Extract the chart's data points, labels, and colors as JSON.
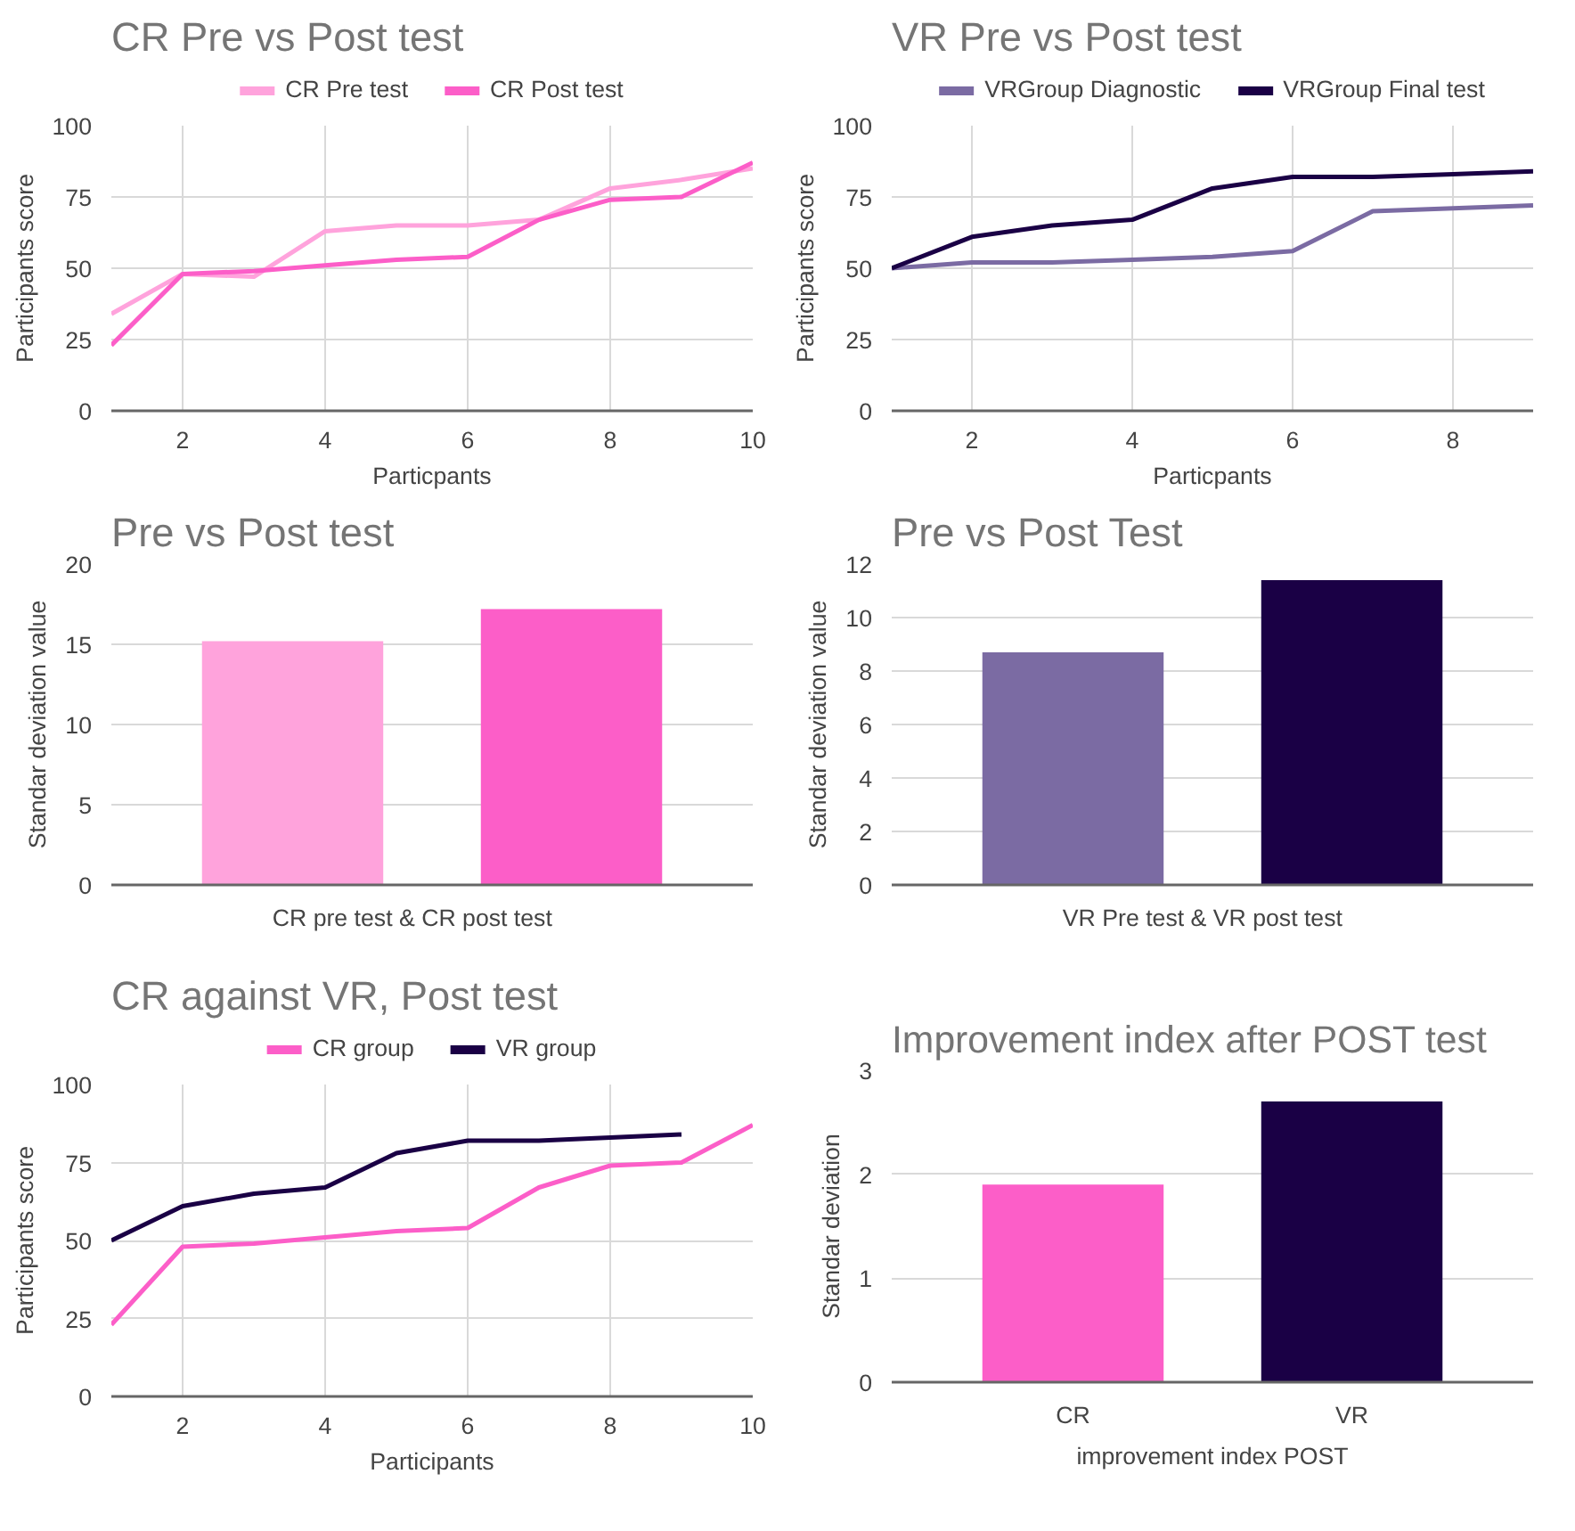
{
  "chart_data": [
    {
      "type": "line",
      "title": "CR Pre vs  Post test",
      "xlabel": "Particpants",
      "ylabel": "Participants score",
      "x": [
        1,
        2,
        3,
        4,
        5,
        6,
        7,
        8,
        9,
        10
      ],
      "xlim": [
        1,
        10
      ],
      "xticks": [
        2,
        4,
        6,
        8,
        10
      ],
      "ylim": [
        0,
        100
      ],
      "yticks": [
        0,
        25,
        50,
        75,
        100
      ],
      "grid": true,
      "legend": "top",
      "series": [
        {
          "name": "CR Pre test",
          "color": "#ffa3dc",
          "values": [
            34,
            48,
            47,
            63,
            65,
            65,
            67,
            78,
            81,
            85
          ]
        },
        {
          "name": "CR Post test",
          "color": "#fc5ec8",
          "values": [
            23,
            48,
            49,
            51,
            53,
            54,
            67,
            74,
            75,
            87
          ]
        }
      ]
    },
    {
      "type": "line",
      "title": "VR Pre vs Post test",
      "xlabel": "Particpants",
      "ylabel": "Participants score",
      "x": [
        1,
        2,
        3,
        4,
        5,
        6,
        7,
        8,
        9
      ],
      "xlim": [
        1,
        9
      ],
      "xticks": [
        2,
        4,
        6,
        8
      ],
      "ylim": [
        0,
        100
      ],
      "yticks": [
        0,
        25,
        50,
        75,
        100
      ],
      "grid": true,
      "legend": "top",
      "series": [
        {
          "name": "VRGroup Diagnostic",
          "color": "#7b6ba3",
          "values": [
            50,
            52,
            52,
            53,
            54,
            56,
            70,
            71,
            72
          ]
        },
        {
          "name": "VRGroup Final test",
          "color": "#1a0045",
          "values": [
            50,
            61,
            65,
            67,
            78,
            82,
            82,
            83,
            84
          ]
        }
      ]
    },
    {
      "type": "bar",
      "title": "Pre vs Post test",
      "xlabel": "CR pre test    &    CR post test",
      "ylabel": "Standar deviation value",
      "categories": [
        null,
        null
      ],
      "values": [
        15.2,
        17.2
      ],
      "colors": [
        "#ffa3dc",
        "#fc5ec8"
      ],
      "ylim": [
        0,
        20
      ],
      "yticks": [
        0,
        5,
        10,
        15,
        20
      ],
      "grid": "y"
    },
    {
      "type": "bar",
      "title": "Pre vs Post Test",
      "xlabel": "VR Pre test    & VR post test",
      "ylabel": "Standar deviation value",
      "categories": [
        null,
        null
      ],
      "values": [
        8.7,
        11.4
      ],
      "colors": [
        "#7b6ba3",
        "#1a0045"
      ],
      "ylim": [
        0,
        12
      ],
      "yticks": [
        0,
        2,
        4,
        6,
        8,
        10,
        12
      ],
      "grid": "y"
    },
    {
      "type": "line",
      "title": "CR against VR, Post test",
      "xlabel": "Participants",
      "ylabel": "Participants score",
      "x": [
        1,
        2,
        3,
        4,
        5,
        6,
        7,
        8,
        9,
        10
      ],
      "xlim": [
        1,
        10
      ],
      "xticks": [
        2,
        4,
        6,
        8,
        10
      ],
      "ylim": [
        0,
        100
      ],
      "yticks": [
        0,
        25,
        50,
        75,
        100
      ],
      "grid": true,
      "legend": "top",
      "series": [
        {
          "name": "CR group",
          "color": "#fc5ec8",
          "values": [
            23,
            48,
            49,
            51,
            53,
            54,
            67,
            74,
            75,
            87
          ]
        },
        {
          "name": "VR group",
          "color": "#1a0045",
          "values": [
            50,
            61,
            65,
            67,
            78,
            82,
            82,
            83,
            84,
            null
          ]
        }
      ]
    },
    {
      "type": "bar",
      "title": "Improvement index after POST test",
      "xlabel": "improvement index POST",
      "ylabel": "Standar deviation",
      "categories": [
        "CR",
        "VR"
      ],
      "values": [
        1.9,
        2.7
      ],
      "colors": [
        "#fc5ec8",
        "#1a0045"
      ],
      "ylim": [
        0,
        3
      ],
      "yticks": [
        0,
        1,
        2,
        3
      ],
      "grid": "y"
    }
  ]
}
